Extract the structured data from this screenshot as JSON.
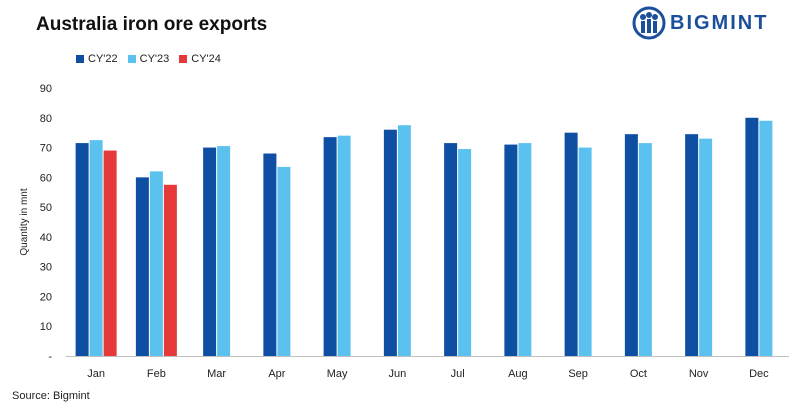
{
  "title": "Australia iron ore exports",
  "logo": {
    "text": "BIGMINT"
  },
  "source": "Source: Bigmint",
  "chart_data": {
    "type": "bar",
    "categories": [
      "Jan",
      "Feb",
      "Mar",
      "Apr",
      "May",
      "Jun",
      "Jul",
      "Aug",
      "Sep",
      "Oct",
      "Nov",
      "Dec"
    ],
    "series": [
      {
        "name": "CY'22",
        "color": "#0f4fa3",
        "values": [
          71.5,
          60,
          70,
          68,
          73.5,
          76,
          71.5,
          71,
          75,
          74.5,
          74.5,
          80
        ]
      },
      {
        "name": "CY'23",
        "color": "#5bc2f0",
        "values": [
          72.5,
          62,
          70.5,
          63.5,
          74,
          77.5,
          69.5,
          71.5,
          70,
          71.5,
          73,
          79
        ]
      },
      {
        "name": "CY'24",
        "color": "#e5393a",
        "values": [
          69,
          57.5,
          null,
          null,
          null,
          null,
          null,
          null,
          null,
          null,
          null,
          null
        ]
      }
    ],
    "ylabel": "Quantity in mnt",
    "ylim": [
      0,
      90
    ],
    "yticks": [
      "-",
      "10",
      "20",
      "30",
      "40",
      "50",
      "60",
      "70",
      "80",
      "90"
    ],
    "grid": false,
    "legend": "top-left"
  }
}
